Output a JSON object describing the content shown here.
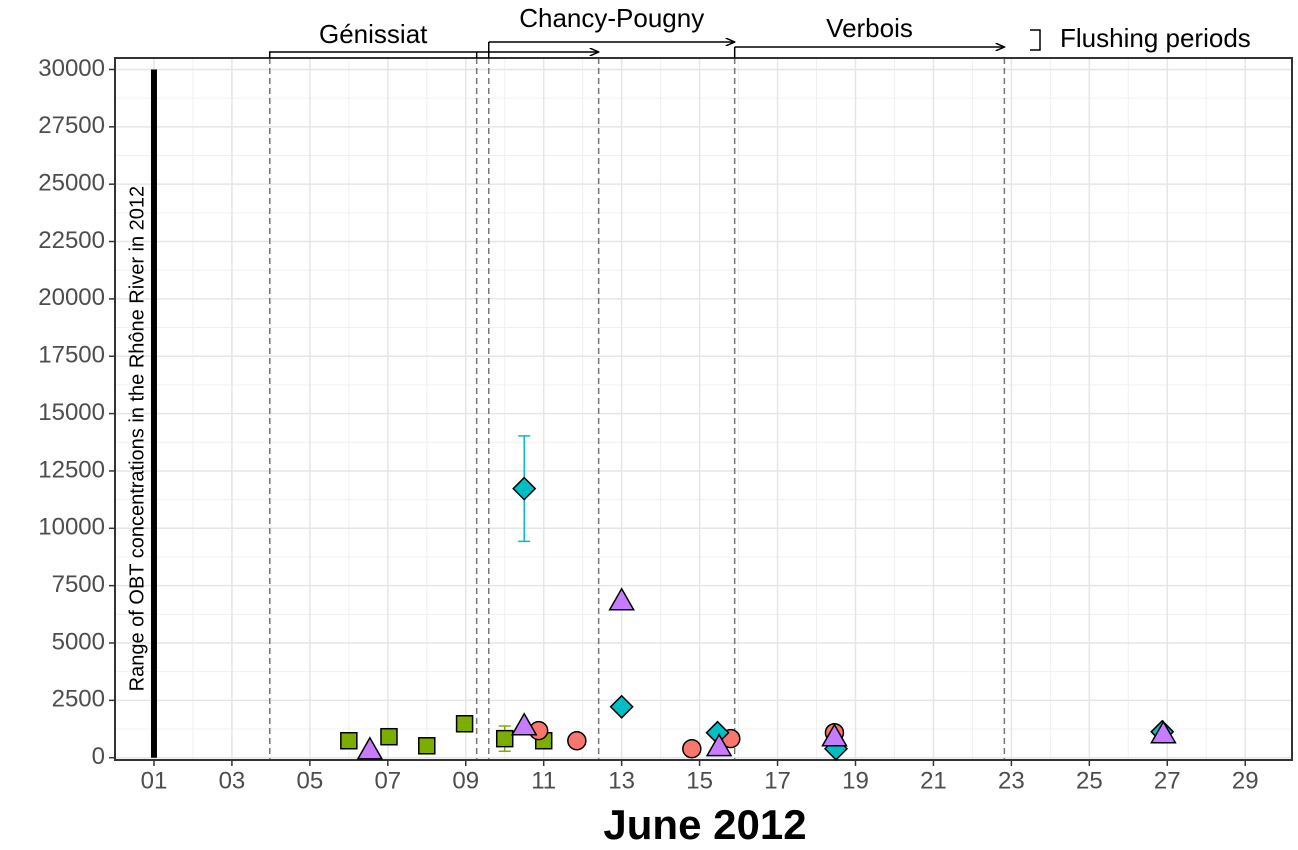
{
  "chart_data": {
    "type": "scatter",
    "xlabel": "June 2012",
    "annotation": "Range of OBT concentrations in the Rhône River in 2012",
    "legend_label": "Flushing periods",
    "xlim": [
      0,
      30.2
    ],
    "ylim": [
      -100,
      30500
    ],
    "xticks": [
      {
        "value": 1,
        "label": "01"
      },
      {
        "value": 3,
        "label": "03"
      },
      {
        "value": 5,
        "label": "05"
      },
      {
        "value": 7,
        "label": "07"
      },
      {
        "value": 9,
        "label": "09"
      },
      {
        "value": 11,
        "label": "11"
      },
      {
        "value": 13,
        "label": "13"
      },
      {
        "value": 15,
        "label": "15"
      },
      {
        "value": 17,
        "label": "17"
      },
      {
        "value": 19,
        "label": "19"
      },
      {
        "value": 21,
        "label": "21"
      },
      {
        "value": 23,
        "label": "23"
      },
      {
        "value": 25,
        "label": "25"
      },
      {
        "value": 27,
        "label": "27"
      },
      {
        "value": 29,
        "label": "29"
      }
    ],
    "yticks": [
      0,
      2500,
      5000,
      7500,
      10000,
      12500,
      15000,
      17500,
      20000,
      22500,
      25000,
      27500,
      30000
    ],
    "grid": true,
    "range_bar": {
      "x": 1,
      "low": 0,
      "high": 30000
    },
    "vlines": [
      3.97,
      9.28,
      9.59,
      12.41,
      15.9,
      22.82
    ],
    "periods": [
      {
        "name": "Génissiat",
        "from": 3.97,
        "to": 9.28
      },
      {
        "name": "Chancy-Pougny",
        "from": 9.59,
        "to": 15.9
      },
      {
        "name": "Verbois",
        "from": 15.9,
        "to": 22.82
      }
    ],
    "extra_arrows": [
      {
        "from": 9.28,
        "to": 12.41
      }
    ],
    "series": [
      {
        "color": "#7cae00",
        "shape": "square",
        "x": [
          6.0,
          7.03,
          8.0,
          8.97,
          10.0,
          11.0
        ],
        "values": [
          740,
          915,
          520,
          1480,
          830,
          740
        ],
        "errors": [
          null,
          null,
          null,
          null,
          550,
          null
        ]
      },
      {
        "color": "#f8766d",
        "shape": "circle",
        "x": [
          10.87,
          11.85,
          14.8,
          15.8,
          18.46
        ],
        "values": [
          1180,
          740,
          390,
          830,
          1090
        ]
      },
      {
        "color": "#00bfc4",
        "shape": "diamond",
        "x": [
          10.5,
          13.0,
          15.46,
          18.5,
          26.87
        ],
        "values": [
          11730,
          2220,
          1090,
          390,
          1130
        ],
        "errors": [
          2300,
          null,
          null,
          null,
          null
        ]
      },
      {
        "color": "#c77cff",
        "shape": "triangle",
        "x": [
          6.54,
          10.5,
          13.0,
          15.5,
          18.46,
          26.9
        ],
        "values": [
          300,
          1350,
          6800,
          440,
          870,
          1000
        ]
      }
    ]
  }
}
